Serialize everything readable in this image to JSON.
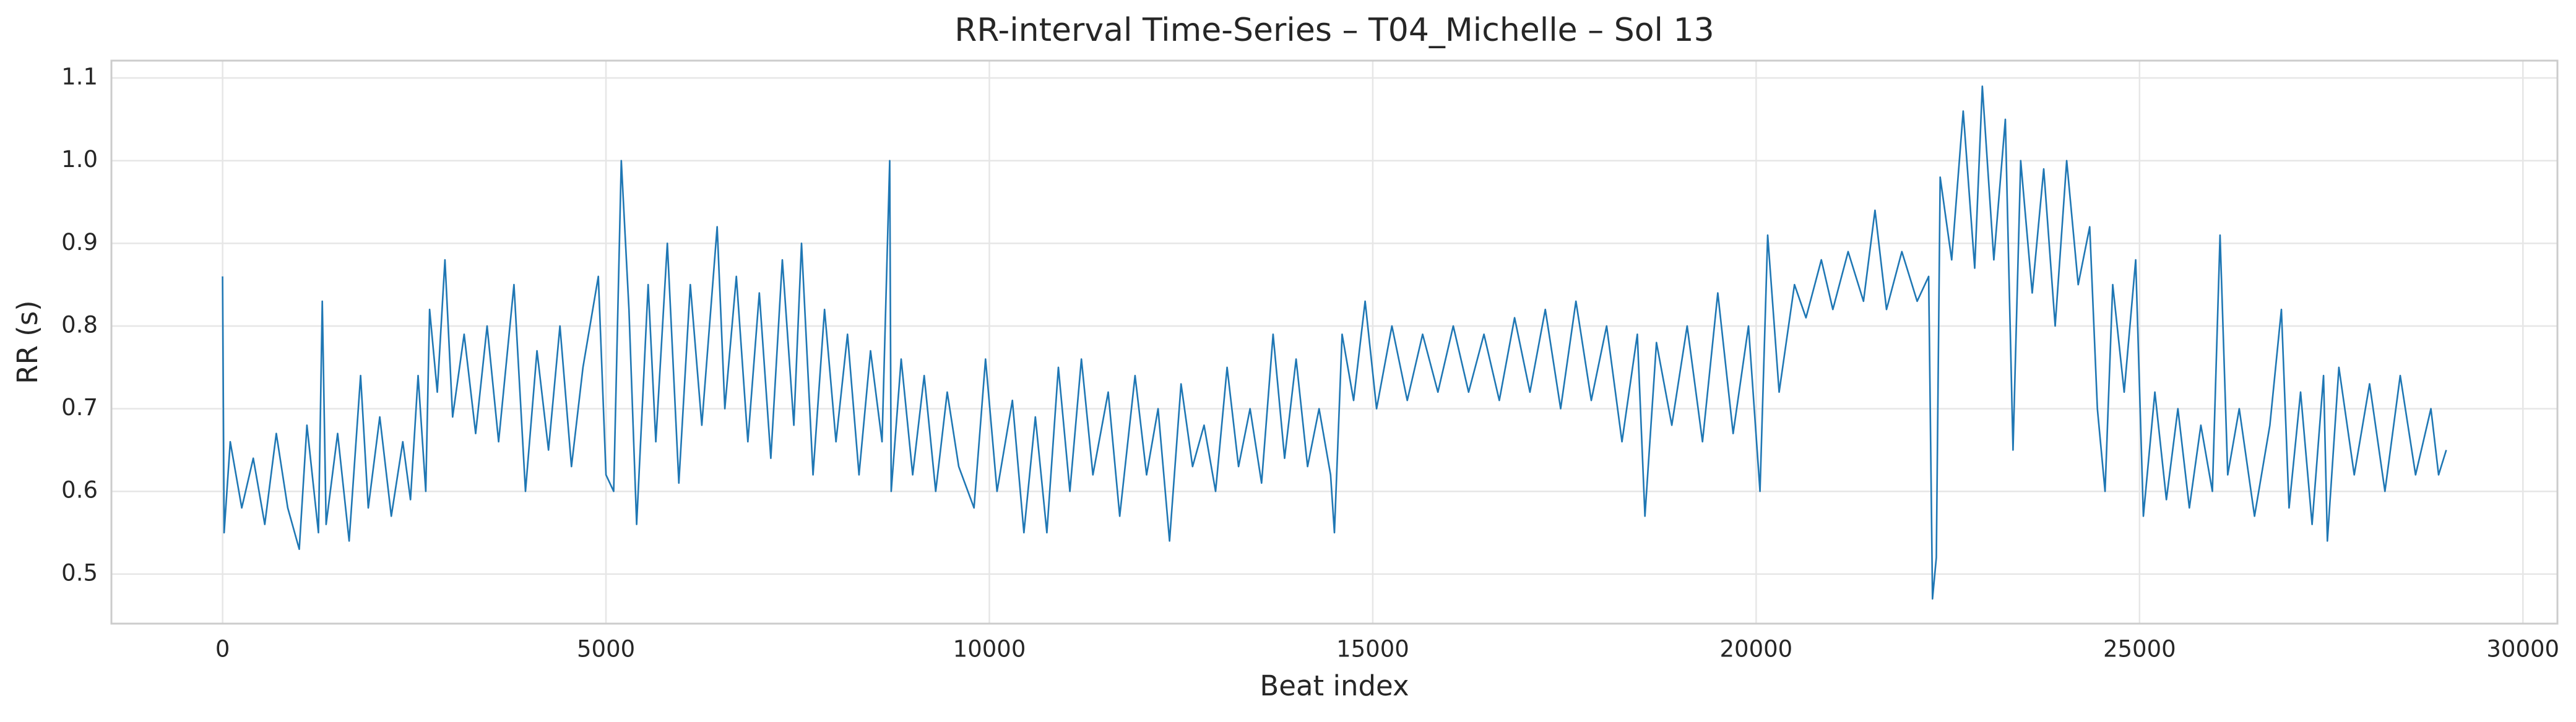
{
  "chart_data": {
    "type": "line",
    "title": "RR-interval Time-Series – T04_Michelle – Sol 13",
    "xlabel": "Beat index",
    "ylabel": "RR (s)",
    "color": "#1f77b4",
    "grid": true,
    "xlim": [
      -1450,
      30450
    ],
    "ylim": [
      0.44,
      1.121
    ],
    "xticks": [
      0,
      5000,
      10000,
      15000,
      20000,
      25000,
      30000
    ],
    "yticks": [
      0.5,
      0.6,
      0.7,
      0.8,
      0.9,
      {
        "value": 1,
        "label": "1.0"
      },
      1.1
    ],
    "x": [
      0,
      20,
      100,
      250,
      400,
      550,
      700,
      850,
      1000,
      1100,
      1250,
      1300,
      1350,
      1500,
      1650,
      1800,
      1900,
      2050,
      2200,
      2350,
      2450,
      2550,
      2650,
      2700,
      2800,
      2900,
      3000,
      3150,
      3300,
      3450,
      3600,
      3800,
      3950,
      4100,
      4250,
      4400,
      4550,
      4700,
      4900,
      5000,
      5100,
      5200,
      5300,
      5400,
      5550,
      5650,
      5800,
      5950,
      6100,
      6250,
      6450,
      6550,
      6700,
      6850,
      7000,
      7150,
      7300,
      7450,
      7550,
      7700,
      7850,
      8000,
      8150,
      8300,
      8450,
      8600,
      8700,
      8720,
      8850,
      9000,
      9150,
      9300,
      9450,
      9600,
      9800,
      9950,
      10100,
      10300,
      10450,
      10600,
      10750,
      10900,
      11050,
      11200,
      11350,
      11550,
      11700,
      11900,
      12050,
      12200,
      12350,
      12500,
      12650,
      12800,
      12950,
      13100,
      13250,
      13400,
      13550,
      13700,
      13850,
      14000,
      14150,
      14300,
      14450,
      14500,
      14600,
      14750,
      14900,
      15050,
      15250,
      15450,
      15650,
      15850,
      16050,
      16250,
      16450,
      16650,
      16850,
      17050,
      17250,
      17450,
      17650,
      17850,
      18050,
      18250,
      18450,
      18550,
      18700,
      18900,
      19100,
      19300,
      19500,
      19700,
      19900,
      20050,
      20150,
      20300,
      20500,
      20650,
      20850,
      21000,
      21200,
      21400,
      21550,
      21700,
      21900,
      22100,
      22250,
      22300,
      22350,
      22400,
      22550,
      22700,
      22850,
      22950,
      23100,
      23250,
      23350,
      23450,
      23600,
      23750,
      23900,
      24050,
      24200,
      24350,
      24450,
      24550,
      24650,
      24800,
      24950,
      25050,
      25200,
      25350,
      25500,
      25650,
      25800,
      25950,
      26050,
      26150,
      26300,
      26500,
      26700,
      26850,
      26950,
      27100,
      27250,
      27400,
      27450,
      27600,
      27800,
      28000,
      28200,
      28400,
      28600,
      28800,
      28900,
      29000
    ],
    "values": [
      0.86,
      0.55,
      0.66,
      0.58,
      0.64,
      0.56,
      0.67,
      0.58,
      0.53,
      0.68,
      0.55,
      0.83,
      0.56,
      0.67,
      0.54,
      0.74,
      0.58,
      0.69,
      0.57,
      0.66,
      0.59,
      0.74,
      0.6,
      0.82,
      0.72,
      0.88,
      0.69,
      0.79,
      0.67,
      0.8,
      0.66,
      0.85,
      0.6,
      0.77,
      0.65,
      0.8,
      0.63,
      0.75,
      0.86,
      0.62,
      0.6,
      1.0,
      0.82,
      0.56,
      0.85,
      0.66,
      0.9,
      0.61,
      0.85,
      0.68,
      0.92,
      0.7,
      0.86,
      0.66,
      0.84,
      0.64,
      0.88,
      0.68,
      0.9,
      0.62,
      0.82,
      0.66,
      0.79,
      0.62,
      0.77,
      0.66,
      1.0,
      0.6,
      0.76,
      0.62,
      0.74,
      0.6,
      0.72,
      0.63,
      0.58,
      0.76,
      0.6,
      0.71,
      0.55,
      0.69,
      0.55,
      0.75,
      0.6,
      0.76,
      0.62,
      0.72,
      0.57,
      0.74,
      0.62,
      0.7,
      0.54,
      0.73,
      0.63,
      0.68,
      0.6,
      0.75,
      0.63,
      0.7,
      0.61,
      0.79,
      0.64,
      0.76,
      0.63,
      0.7,
      0.62,
      0.55,
      0.79,
      0.71,
      0.83,
      0.7,
      0.8,
      0.71,
      0.79,
      0.72,
      0.8,
      0.72,
      0.79,
      0.71,
      0.81,
      0.72,
      0.82,
      0.7,
      0.83,
      0.71,
      0.8,
      0.66,
      0.79,
      0.57,
      0.78,
      0.68,
      0.8,
      0.66,
      0.84,
      0.67,
      0.8,
      0.6,
      0.91,
      0.72,
      0.85,
      0.81,
      0.88,
      0.82,
      0.89,
      0.83,
      0.94,
      0.82,
      0.89,
      0.83,
      0.86,
      0.47,
      0.52,
      0.98,
      0.88,
      1.06,
      0.87,
      1.09,
      0.88,
      1.05,
      0.65,
      1.0,
      0.84,
      0.99,
      0.8,
      1.0,
      0.85,
      0.92,
      0.7,
      0.6,
      0.85,
      0.72,
      0.88,
      0.57,
      0.72,
      0.59,
      0.7,
      0.58,
      0.68,
      0.6,
      0.91,
      0.62,
      0.7,
      0.57,
      0.68,
      0.82,
      0.58,
      0.72,
      0.56,
      0.74,
      0.54,
      0.75,
      0.62,
      0.73,
      0.6,
      0.74,
      0.62,
      0.7,
      0.62,
      0.65
    ]
  }
}
